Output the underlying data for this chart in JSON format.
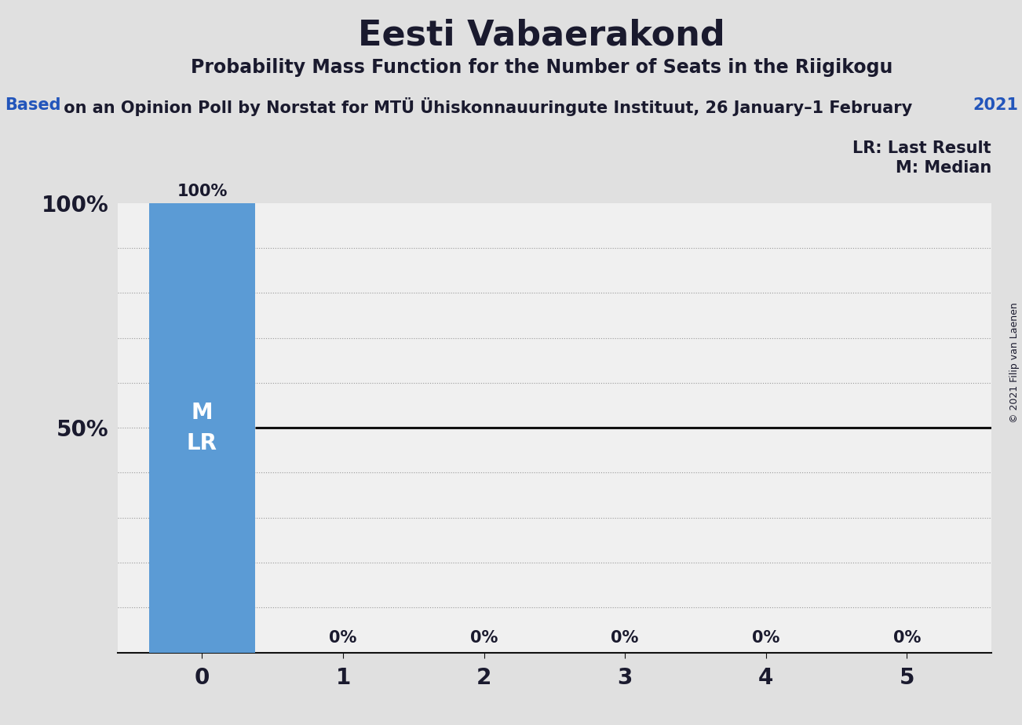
{
  "title": "Eesti Vabaerakond",
  "subtitle": "Probability Mass Function for the Number of Seats in the Riigikogu",
  "source_part1": "Based",
  "source_part2": " on an Opinion Poll by Norstat for MTÜ Ühiskonnauuringute Instituut, 26 January–1 February",
  "source_part3": "2021",
  "copyright": "© 2021 Filip van Laenen",
  "seats": [
    0,
    1,
    2,
    3,
    4,
    5
  ],
  "probabilities": [
    1.0,
    0.0,
    0.0,
    0.0,
    0.0,
    0.0
  ],
  "bar_color": "#5B9BD5",
  "bar_label_color": "#FFFFFF",
  "median": 0,
  "last_result": 0,
  "legend_lr": "LR: Last Result",
  "legend_m": "M: Median",
  "background_color": "#E0E0E0",
  "plot_bg_color": "#F0F0F0",
  "title_color": "#1A1A2E",
  "subtitle_color": "#1A1A2E",
  "source_color": "#1A1A2E",
  "source_blue_color": "#2255BB",
  "grid_color": "#999999",
  "solid_line_color": "#111111",
  "bar_label_fontsize": 15,
  "title_fontsize": 32,
  "subtitle_fontsize": 17,
  "source_fontsize": 15,
  "ytick_fontsize": 20,
  "xtick_fontsize": 20,
  "legend_fontsize": 15,
  "copyright_fontsize": 9,
  "ml_fontsize": 20
}
